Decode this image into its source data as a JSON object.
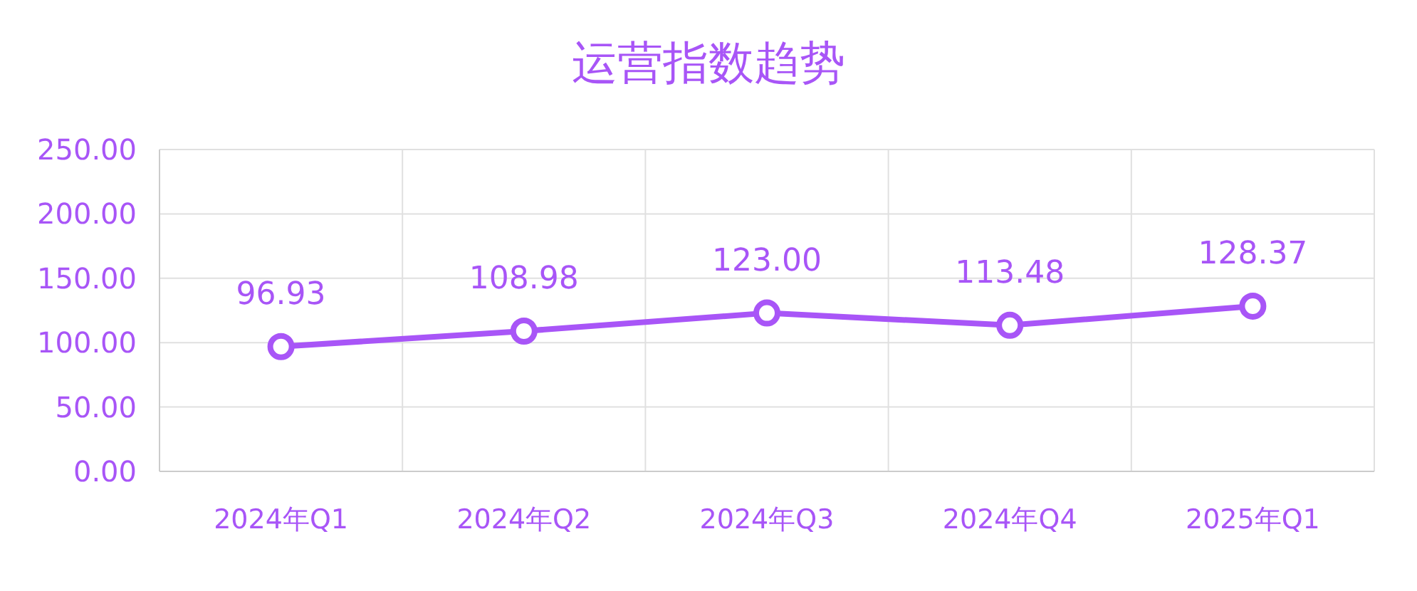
{
  "chart_data": {
    "type": "line",
    "title": "运营指数趋势",
    "categories": [
      "2024年Q1",
      "2024年Q2",
      "2024年Q3",
      "2024年Q4",
      "2025年Q1"
    ],
    "series": [
      {
        "color": "#a855f7",
        "values": [
          96.93,
          108.98,
          123.0,
          113.48,
          128.37
        ]
      }
    ],
    "ylim": [
      0,
      250
    ],
    "yticks": [
      {
        "value": 0,
        "label": "0.00"
      },
      {
        "value": 50,
        "label": "50.00"
      },
      {
        "value": 100,
        "label": "100.00"
      },
      {
        "value": 150,
        "label": "150.00"
      },
      {
        "value": 200,
        "label": "200.00"
      },
      {
        "value": 250,
        "label": "250.00"
      }
    ],
    "value_labels": [
      "96.93",
      "108.98",
      "123.00",
      "113.48",
      "128.37"
    ],
    "grid": true,
    "marker": "circle",
    "line_style": "solid"
  }
}
